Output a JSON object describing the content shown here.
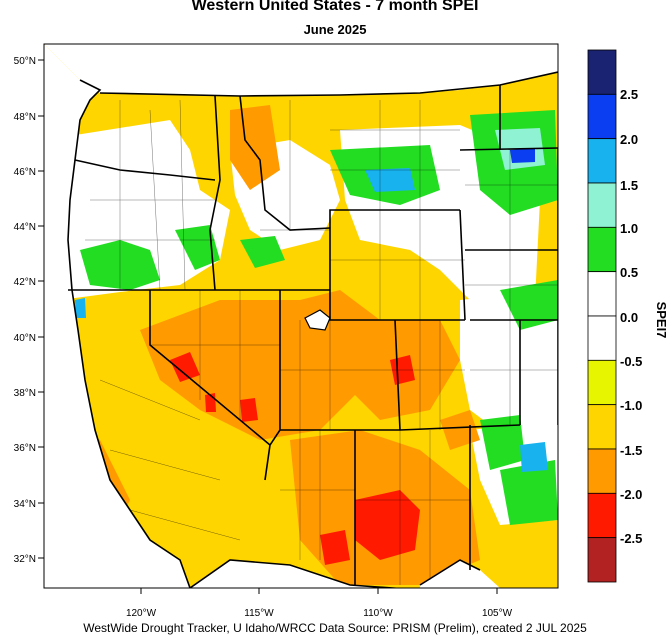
{
  "title": "Western United States - 7 month SPEI",
  "subtitle": "June 2025",
  "credit": "WestWide Drought Tracker, U Idaho/WRCC Data Source: PRISM (Prelim), created  2 JUL 2025",
  "map": {
    "lat_labels": [
      "50°N",
      "48°N",
      "46°N",
      "44°N",
      "42°N",
      "40°N",
      "38°N",
      "36°N",
      "34°N",
      "32°N"
    ],
    "lon_labels": [
      "120°W",
      "115°W",
      "110°W",
      "105°W"
    ]
  },
  "colorbar": {
    "title": "SPEI7",
    "tick_labels": [
      "2.5",
      "2.0",
      "1.5",
      "1.0",
      "0.5",
      "0.0",
      "-0.5",
      "-1.0",
      "-1.5",
      "-2.0",
      "-2.5"
    ],
    "colors": [
      "#1a2371",
      "#0a3ef0",
      "#18b2ef",
      "#8ff2d2",
      "#22dd22",
      "#ffffff",
      "#ffffff",
      "#e8f500",
      "#ffd500",
      "#ff9a00",
      "#ff1a00",
      "#b22222"
    ]
  },
  "colors": {
    "drought_moderate": "#ffd500",
    "drought_severe": "#ff9a00",
    "drought_extreme": "#ff1a00",
    "wet_moderate": "#22dd22",
    "wet_high": "#18b2ef"
  }
}
